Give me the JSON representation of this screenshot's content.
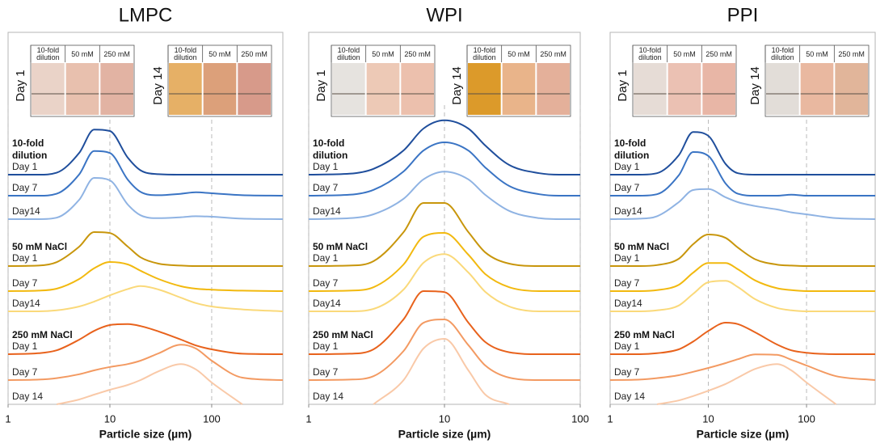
{
  "chart_data": [
    {
      "type": "line",
      "title": "LMPC",
      "xlabel": "Particle size (µm)",
      "log_x": true,
      "grid": true,
      "xlim": [
        1,
        500
      ],
      "xticks": [
        1,
        10,
        100
      ],
      "x": [
        1,
        2,
        3,
        5,
        7,
        10,
        15,
        20,
        30,
        50,
        70,
        100,
        200,
        500
      ],
      "photos": [
        {
          "day": "Day 1",
          "columns": [
            "10-fold\ndilution",
            "50 mM",
            "250 mM"
          ]
        },
        {
          "day": "Day 14",
          "columns": [
            "10-fold\ndilution",
            "50 mM",
            "250 mM"
          ]
        }
      ],
      "groups": [
        {
          "name": "10-fold\ndilution",
          "series": [
            {
              "name": "Day 1",
              "color": "#1f4e9c",
              "values": [
                0,
                0,
                0.04,
                0.45,
                0.93,
                0.9,
                0.35,
                0.09,
                0.01,
                0,
                0,
                0,
                0,
                0
              ]
            },
            {
              "name": "Day 7",
              "color": "#3a74c4",
              "values": [
                0,
                0,
                0.04,
                0.44,
                0.92,
                0.88,
                0.33,
                0.08,
                0.01,
                0.04,
                0.07,
                0.05,
                0.01,
                0
              ]
            },
            {
              "name": "Day14",
              "color": "#8fb3e3",
              "values": [
                0,
                0,
                0.03,
                0.4,
                0.85,
                0.8,
                0.3,
                0.08,
                0.02,
                0.04,
                0.06,
                0.05,
                0.01,
                0
              ]
            }
          ]
        },
        {
          "name": "50 mM NaCl",
          "series": [
            {
              "name": "Day 1",
              "color": "#c8960c",
              "values": [
                0,
                0.01,
                0.08,
                0.4,
                0.7,
                0.68,
                0.4,
                0.18,
                0.05,
                0.01,
                0,
                0,
                0,
                0
              ]
            },
            {
              "name": "Day 7",
              "color": "#f2b90f",
              "values": [
                0,
                0.01,
                0.05,
                0.25,
                0.47,
                0.6,
                0.55,
                0.42,
                0.25,
                0.1,
                0.05,
                0.03,
                0.01,
                0
              ]
            },
            {
              "name": "Day14",
              "color": "#fad97a",
              "values": [
                0,
                0,
                0.02,
                0.1,
                0.2,
                0.33,
                0.46,
                0.52,
                0.45,
                0.28,
                0.17,
                0.1,
                0.04,
                0
              ]
            }
          ]
        },
        {
          "name": "250 mM NaCl",
          "series": [
            {
              "name": "Day 1",
              "color": "#e8621c",
              "values": [
                0,
                0.02,
                0.08,
                0.3,
                0.48,
                0.6,
                0.62,
                0.58,
                0.47,
                0.3,
                0.18,
                0.1,
                0.01,
                0
              ]
            },
            {
              "name": "Day 7",
              "color": "#f39a62",
              "values": [
                0,
                0.01,
                0.04,
                0.12,
                0.2,
                0.27,
                0.33,
                0.4,
                0.55,
                0.73,
                0.65,
                0.4,
                0.05,
                0
              ]
            },
            {
              "name": "Day 14",
              "color": "#f9c9a8",
              "values": [
                null,
                null,
                0,
                0.1,
                0.2,
                0.3,
                0.4,
                0.5,
                0.68,
                0.83,
                0.72,
                0.45,
                0,
                null
              ]
            }
          ]
        }
      ]
    },
    {
      "type": "line",
      "title": "WPI",
      "xlabel": "Particle size (µm)",
      "log_x": true,
      "grid": true,
      "xlim": [
        1,
        100
      ],
      "xticks": [
        1,
        10,
        100
      ],
      "x": [
        1,
        2,
        3,
        5,
        7,
        10,
        15,
        20,
        30,
        50,
        70,
        100
      ],
      "photos": [
        {
          "day": "Day 1",
          "columns": [
            "10-fold\ndilution",
            "50 mM",
            "250 mM"
          ]
        },
        {
          "day": "Day 14",
          "columns": [
            "10-fold\ndilution",
            "50 mM",
            "250 mM"
          ]
        }
      ],
      "groups": [
        {
          "name": "10-fold\ndilution",
          "series": [
            {
              "name": "Day 1",
              "color": "#1f4e9c",
              "values": [
                0,
                0.02,
                0.12,
                0.5,
                0.95,
                1.12,
                0.95,
                0.6,
                0.2,
                0.03,
                0,
                0
              ]
            },
            {
              "name": "Day 7",
              "color": "#3a74c4",
              "values": [
                0,
                0.02,
                0.12,
                0.5,
                0.93,
                1.1,
                0.93,
                0.58,
                0.2,
                0.03,
                0,
                0
              ]
            },
            {
              "name": "Day14",
              "color": "#8fb3e3",
              "values": [
                0,
                0.02,
                0.1,
                0.42,
                0.82,
                0.98,
                0.82,
                0.5,
                0.17,
                0.02,
                0,
                0
              ]
            }
          ]
        },
        {
          "name": "50 mM NaCl",
          "series": [
            {
              "name": "Day 1",
              "color": "#c8960c",
              "values": [
                0,
                0.01,
                0.1,
                0.7,
                1.3,
                1.3,
                0.7,
                0.28,
                0.05,
                0,
                0,
                0
              ]
            },
            {
              "name": "Day 7",
              "color": "#f2b90f",
              "values": [
                0,
                0.01,
                0.08,
                0.55,
                1.12,
                1.2,
                0.75,
                0.35,
                0.08,
                0,
                0,
                0
              ]
            },
            {
              "name": "Day14",
              "color": "#fad97a",
              "values": [
                0,
                0,
                0.05,
                0.45,
                1.0,
                1.18,
                0.8,
                0.4,
                0.1,
                0,
                0,
                0
              ]
            }
          ]
        },
        {
          "name": "250 mM NaCl",
          "series": [
            {
              "name": "Day 1",
              "color": "#e8621c",
              "values": [
                0,
                0.01,
                0.1,
                0.72,
                1.3,
                1.28,
                0.65,
                0.25,
                0.04,
                0,
                0,
                0
              ]
            },
            {
              "name": "Day 7",
              "color": "#f39a62",
              "values": [
                0,
                0.01,
                0.08,
                0.6,
                1.18,
                1.25,
                0.72,
                0.3,
                0.05,
                0,
                0,
                0
              ]
            },
            {
              "name": "Day 14",
              "color": "#f9c9a8",
              "values": [
                null,
                null,
                0,
                0.5,
                1.15,
                1.35,
                0.7,
                0.2,
                0,
                null,
                null,
                null
              ]
            }
          ]
        }
      ]
    },
    {
      "type": "line",
      "title": "PPI",
      "xlabel": "Particle size (µm)",
      "log_x": true,
      "grid": true,
      "xlim": [
        1,
        500
      ],
      "xticks": [
        1,
        10,
        100
      ],
      "x": [
        1,
        2,
        3,
        5,
        7,
        10,
        15,
        20,
        30,
        50,
        70,
        100,
        200,
        500
      ],
      "photos": [
        {
          "day": "Day 1",
          "columns": [
            "10-fold\ndilution",
            "50 mM",
            "250 mM"
          ]
        },
        {
          "day": "Day 14",
          "columns": [
            "10-fold\ndilution",
            "50 mM",
            "250 mM"
          ]
        }
      ],
      "groups": [
        {
          "name": "10-fold\ndilution",
          "series": [
            {
              "name": "Day 1",
              "color": "#1f4e9c",
              "values": [
                0,
                0,
                0.03,
                0.4,
                0.88,
                0.8,
                0.22,
                0.03,
                0,
                0,
                0,
                0,
                0,
                0
              ]
            },
            {
              "name": "Day 7",
              "color": "#3a74c4",
              "values": [
                0,
                0,
                0.03,
                0.42,
                0.9,
                0.82,
                0.25,
                0.04,
                0,
                0,
                0.02,
                0,
                0,
                0
              ]
            },
            {
              "name": "Day14",
              "color": "#8fb3e3",
              "values": [
                0,
                0.01,
                0.06,
                0.35,
                0.6,
                0.62,
                0.45,
                0.35,
                0.27,
                0.2,
                0.14,
                0.1,
                0.02,
                0
              ]
            }
          ]
        },
        {
          "name": "50 mM NaCl",
          "series": [
            {
              "name": "Day 1",
              "color": "#c8960c",
              "values": [
                0,
                0,
                0.02,
                0.15,
                0.45,
                0.65,
                0.58,
                0.38,
                0.14,
                0.03,
                0.01,
                0,
                0,
                0
              ]
            },
            {
              "name": "Day 7",
              "color": "#f2b90f",
              "values": [
                0,
                0,
                0.02,
                0.13,
                0.38,
                0.58,
                0.58,
                0.45,
                0.22,
                0.06,
                0.02,
                0,
                0,
                0
              ]
            },
            {
              "name": "Day14",
              "color": "#fad97a",
              "values": [
                0,
                0,
                0.02,
                0.12,
                0.36,
                0.6,
                0.63,
                0.5,
                0.25,
                0.07,
                0.02,
                0,
                0,
                0
              ]
            }
          ]
        },
        {
          "name": "250 mM NaCl",
          "series": [
            {
              "name": "Day 1",
              "color": "#e8621c",
              "values": [
                0,
                0,
                0.02,
                0.1,
                0.26,
                0.48,
                0.65,
                0.62,
                0.45,
                0.2,
                0.08,
                0.03,
                0,
                0
              ]
            },
            {
              "name": "Day 7",
              "color": "#f39a62",
              "values": [
                0,
                0.01,
                0.04,
                0.1,
                0.17,
                0.25,
                0.35,
                0.43,
                0.53,
                0.52,
                0.42,
                0.3,
                0.08,
                0
              ]
            },
            {
              "name": "Day 14",
              "color": "#f9c9a8",
              "values": [
                null,
                null,
                0,
                0.08,
                0.17,
                0.28,
                0.42,
                0.55,
                0.73,
                0.83,
                0.7,
                0.45,
                0,
                null
              ]
            }
          ]
        }
      ]
    }
  ]
}
